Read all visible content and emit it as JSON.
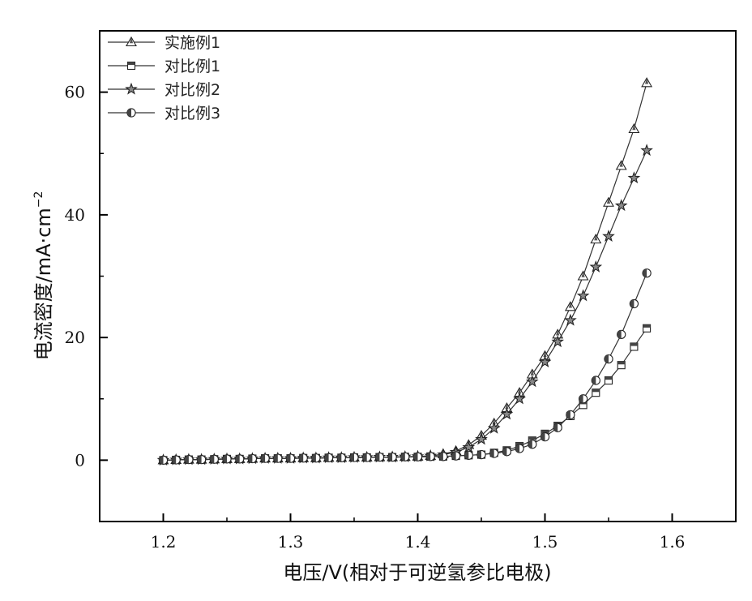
{
  "chart_data": {
    "type": "line",
    "title": "",
    "xlabel": "电压/V(相对于可逆氢参比电极)",
    "ylabel": "电流密度/mA·cm",
    "ylabel_sup": "−2",
    "xlim": [
      1.15,
      1.65
    ],
    "ylim": [
      -10,
      70
    ],
    "xticks": [
      "1.2",
      "1.3",
      "1.4",
      "1.5",
      "1.6"
    ],
    "xtick_values": [
      1.2,
      1.3,
      1.4,
      1.5,
      1.6
    ],
    "yticks": [
      "0",
      "20",
      "40",
      "60"
    ],
    "ytick_values": [
      0,
      20,
      40,
      60
    ],
    "grid": false,
    "legend_position": "top-left",
    "x": [
      1.2,
      1.21,
      1.22,
      1.23,
      1.24,
      1.25,
      1.26,
      1.27,
      1.28,
      1.29,
      1.3,
      1.31,
      1.32,
      1.33,
      1.34,
      1.35,
      1.36,
      1.37,
      1.38,
      1.39,
      1.4,
      1.41,
      1.42,
      1.43,
      1.44,
      1.45,
      1.46,
      1.47,
      1.48,
      1.49,
      1.5,
      1.51,
      1.52,
      1.53,
      1.54,
      1.55,
      1.56,
      1.57,
      1.58
    ],
    "series": [
      {
        "name": "实施例1",
        "marker": "triangle",
        "values": [
          0,
          0.05,
          0.1,
          0.1,
          0.15,
          0.2,
          0.2,
          0.25,
          0.3,
          0.3,
          0.3,
          0.35,
          0.35,
          0.4,
          0.4,
          0.45,
          0.45,
          0.5,
          0.5,
          0.55,
          0.6,
          0.7,
          1.0,
          1.5,
          2.5,
          4,
          6,
          8.5,
          11,
          14,
          17,
          20.5,
          25,
          30,
          36,
          42,
          48,
          54,
          61.5
        ]
      },
      {
        "name": "对比例1",
        "marker": "square",
        "values": [
          0,
          0.05,
          0.1,
          0.1,
          0.15,
          0.2,
          0.2,
          0.25,
          0.3,
          0.3,
          0.3,
          0.35,
          0.35,
          0.4,
          0.4,
          0.45,
          0.45,
          0.5,
          0.5,
          0.55,
          0.55,
          0.6,
          0.6,
          0.7,
          0.8,
          0.9,
          1.2,
          1.6,
          2.3,
          3.2,
          4.3,
          5.6,
          7.2,
          9,
          11,
          13,
          15.5,
          18.5,
          21.5
        ]
      },
      {
        "name": "对比例2",
        "marker": "star",
        "values": [
          0,
          0.05,
          0.1,
          0.1,
          0.15,
          0.2,
          0.2,
          0.25,
          0.3,
          0.3,
          0.3,
          0.35,
          0.35,
          0.4,
          0.4,
          0.45,
          0.45,
          0.5,
          0.5,
          0.55,
          0.6,
          0.7,
          0.9,
          1.3,
          2.1,
          3.4,
          5.2,
          7.5,
          10,
          12.8,
          16,
          19.3,
          22.8,
          26.8,
          31.5,
          36.5,
          41.5,
          46,
          50.5
        ]
      },
      {
        "name": "对比例3",
        "marker": "circle",
        "values": [
          0,
          0.05,
          0.1,
          0.1,
          0.15,
          0.2,
          0.2,
          0.25,
          0.3,
          0.3,
          0.3,
          0.35,
          0.35,
          0.4,
          0.4,
          0.45,
          0.45,
          0.5,
          0.5,
          0.55,
          0.55,
          0.6,
          0.6,
          0.7,
          0.8,
          0.9,
          1.1,
          1.4,
          1.9,
          2.6,
          3.8,
          5.3,
          7.4,
          10,
          13,
          16.5,
          20.5,
          25.5,
          30.5
        ]
      }
    ]
  }
}
